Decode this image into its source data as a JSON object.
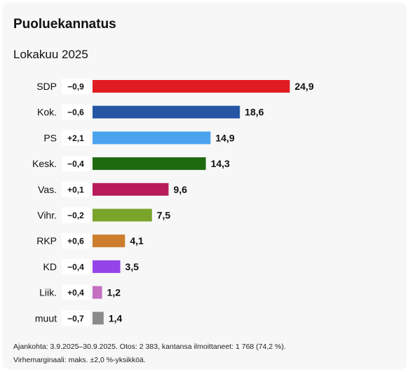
{
  "chart_data": {
    "type": "bar",
    "orientation": "horizontal",
    "title": "Puoluekannatus",
    "subtitle": "Lokakuu 2025",
    "categories": [
      "SDP",
      "Kok.",
      "PS",
      "Kesk.",
      "Vas.",
      "Vihr.",
      "RKP",
      "KD",
      "Liik.",
      "muut"
    ],
    "values": [
      24.9,
      18.6,
      14.9,
      14.3,
      9.6,
      7.5,
      4.1,
      3.5,
      1.2,
      1.4
    ],
    "value_labels": [
      "24,9",
      "18,6",
      "14,9",
      "14,3",
      "9,6",
      "7,5",
      "4,1",
      "3,5",
      "1,2",
      "1,4"
    ],
    "changes": [
      "−0,9",
      "−0,6",
      "+2,1",
      "−0,4",
      "+0,1",
      "−0,2",
      "+0,6",
      "−0,4",
      "+0,4",
      "−0,7"
    ],
    "colors": [
      "#e11b22",
      "#2556a4",
      "#4ba3ee",
      "#1e6a0f",
      "#b81b5a",
      "#7aa42a",
      "#cc7e2c",
      "#9444e8",
      "#c46fc0",
      "#8a8a8a"
    ],
    "xlim": [
      0,
      25
    ],
    "grid": false,
    "legend": "none"
  },
  "footnote": {
    "line1": "Ajankohta: 3.9.2025–30.9.2025. Otos: 2 383, kantansa ilmoittaneet: 1 768 (74,2 %).",
    "line2": "Virhemarginaali: maks. ±2,0 %-yksikköä."
  }
}
